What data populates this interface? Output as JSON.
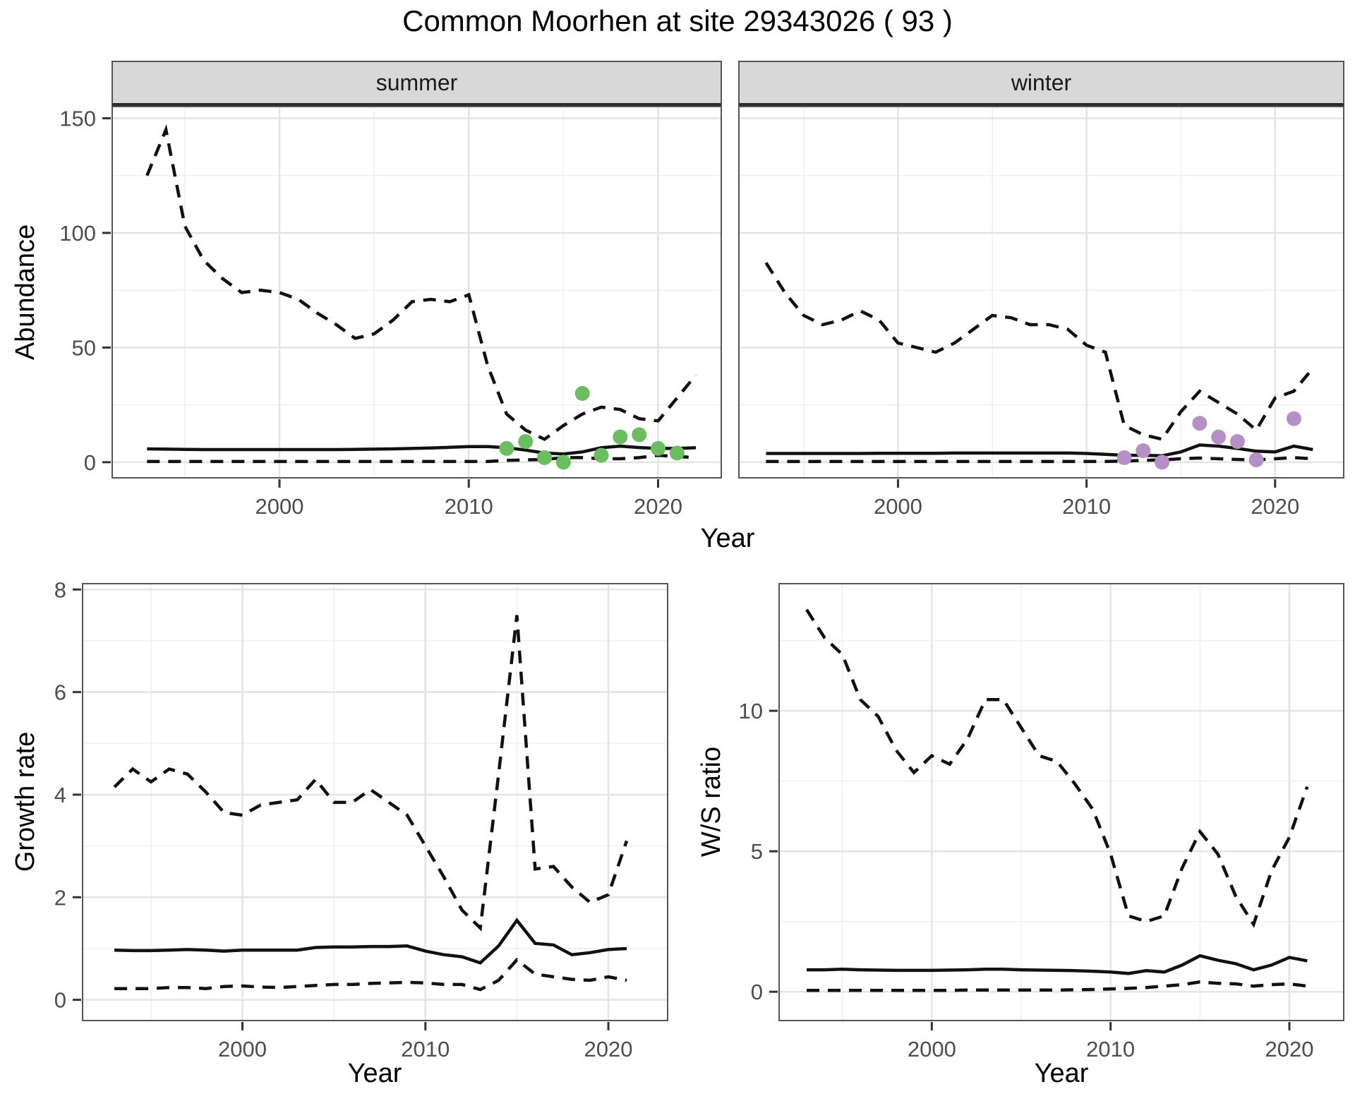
{
  "title": "Common Moorhen at site 29343026 ( 93 )",
  "colors": {
    "summer_point": "#6abe5f",
    "winter_point": "#b78fc7",
    "line": "#111111",
    "strip_bg": "#d8d8d8",
    "panel_border": "#555555",
    "grid_major": "#e4e4e4",
    "grid_minor": "#f0f0f0",
    "tick_text": "#4d4d4d",
    "background": "#ffffff"
  },
  "chart_data": [
    {
      "id": "abundance_summer",
      "type": "line",
      "facet_label": "summer",
      "xlabel": "Year",
      "ylabel": "Abundance",
      "x_ticks": [
        2000,
        2010,
        2020
      ],
      "x_minor": [
        1995,
        2005,
        2015
      ],
      "y_ticks": [
        0,
        50,
        100,
        150
      ],
      "y_minor": [
        25,
        75,
        125
      ],
      "xlim": [
        1991.2,
        2023.3
      ],
      "ylim": [
        -6.5,
        154.8
      ],
      "grid": true,
      "years": [
        1993,
        1994,
        1995,
        1996,
        1997,
        1998,
        1999,
        2000,
        2001,
        2002,
        2003,
        2004,
        2005,
        2006,
        2007,
        2008,
        2009,
        2010,
        2011,
        2012,
        2013,
        2014,
        2015,
        2016,
        2017,
        2018,
        2019,
        2020,
        2021,
        2022
      ],
      "series": [
        {
          "name": "upper_95ci",
          "style": "dashed",
          "values": [
            125,
            145,
            103,
            88,
            80,
            74,
            75,
            74,
            71,
            65,
            60,
            54,
            56,
            62,
            70,
            71,
            70,
            73,
            42,
            21,
            14,
            10,
            16,
            21,
            24,
            23,
            19,
            18,
            28,
            38
          ]
        },
        {
          "name": "median",
          "style": "solid",
          "values": [
            5.8,
            5.7,
            5.6,
            5.5,
            5.5,
            5.5,
            5.5,
            5.5,
            5.5,
            5.5,
            5.5,
            5.6,
            5.7,
            5.8,
            6.0,
            6.2,
            6.5,
            6.8,
            6.8,
            6.3,
            5.3,
            4.0,
            3.6,
            4.5,
            6.3,
            7.0,
            6.4,
            6.0,
            6.0,
            6.3
          ]
        },
        {
          "name": "lower_95ci",
          "style": "dashed",
          "values": [
            0.3,
            0.3,
            0.3,
            0.3,
            0.3,
            0.3,
            0.3,
            0.3,
            0.3,
            0.3,
            0.3,
            0.3,
            0.3,
            0.3,
            0.3,
            0.3,
            0.3,
            0.3,
            0.3,
            0.8,
            1.0,
            1.2,
            2.0,
            2.0,
            1.5,
            1.5,
            2.0,
            3.0,
            2.5,
            2.0
          ]
        }
      ],
      "points": {
        "name": "observed_counts",
        "color": "#6abe5f",
        "years": [
          2012,
          2013,
          2014,
          2015,
          2016,
          2017,
          2018,
          2019,
          2020,
          2021
        ],
        "values": [
          6,
          9,
          2,
          0,
          30,
          3,
          11,
          12,
          6,
          4
        ]
      }
    },
    {
      "id": "abundance_winter",
      "type": "line",
      "facet_label": "winter",
      "xlabel": "Year",
      "ylabel": "",
      "x_ticks": [
        2000,
        2010,
        2020
      ],
      "x_minor": [
        1995,
        2005,
        2015
      ],
      "y_ticks": [
        0,
        50,
        100,
        150
      ],
      "y_minor": [
        25,
        75,
        125
      ],
      "xlim": [
        1991.6,
        2023.6
      ],
      "ylim": [
        -6.5,
        154.8
      ],
      "grid": true,
      "years": [
        1993,
        1994,
        1995,
        1996,
        1997,
        1998,
        1999,
        2000,
        2001,
        2002,
        2003,
        2004,
        2005,
        2006,
        2007,
        2008,
        2009,
        2010,
        2011,
        2012,
        2013,
        2014,
        2015,
        2016,
        2017,
        2018,
        2019,
        2020,
        2021,
        2022
      ],
      "series": [
        {
          "name": "upper_95ci",
          "style": "dashed",
          "values": [
            87,
            74,
            64,
            60,
            62,
            66,
            62,
            52,
            50,
            48,
            52,
            58,
            64,
            63,
            60,
            60,
            58,
            51,
            48,
            16,
            12,
            10,
            22,
            31,
            26,
            21,
            14,
            28,
            31,
            41
          ]
        },
        {
          "name": "median",
          "style": "solid",
          "values": [
            3.8,
            3.8,
            3.8,
            3.8,
            3.8,
            3.8,
            3.9,
            3.9,
            3.9,
            3.9,
            4.0,
            4.0,
            4.0,
            4.0,
            4.0,
            4.0,
            4.0,
            3.8,
            3.4,
            3.0,
            3.0,
            2.8,
            4.5,
            7.5,
            7.0,
            6.0,
            4.8,
            4.5,
            7.0,
            5.5
          ]
        },
        {
          "name": "lower_95ci",
          "style": "dashed",
          "values": [
            0.3,
            0.3,
            0.3,
            0.3,
            0.3,
            0.3,
            0.3,
            0.3,
            0.3,
            0.3,
            0.3,
            0.3,
            0.3,
            0.3,
            0.3,
            0.3,
            0.3,
            0.3,
            0.3,
            0.5,
            0.8,
            1.0,
            1.5,
            1.8,
            1.5,
            1.2,
            1.0,
            1.5,
            2.0,
            1.5
          ]
        }
      ],
      "points": {
        "name": "observed_counts",
        "color": "#b78fc7",
        "years": [
          2012,
          2013,
          2014,
          2016,
          2017,
          2018,
          2019,
          2021
        ],
        "values": [
          2,
          5,
          0,
          17,
          11,
          9,
          1,
          19
        ]
      }
    },
    {
      "id": "growth_rate",
      "type": "line",
      "facet_label": "",
      "xlabel": "Year",
      "ylabel": "Growth rate",
      "x_ticks": [
        2000,
        2010,
        2020
      ],
      "x_minor": [
        1995,
        2005,
        2015
      ],
      "y_ticks": [
        0,
        2,
        4,
        6,
        8
      ],
      "y_minor": [
        1,
        3,
        5,
        7
      ],
      "xlim": [
        1991.3,
        2023.2
      ],
      "ylim": [
        -0.39,
        8.1
      ],
      "grid": true,
      "years": [
        1993,
        1994,
        1995,
        1996,
        1997,
        1998,
        1999,
        2000,
        2001,
        2002,
        2003,
        2004,
        2005,
        2006,
        2007,
        2008,
        2009,
        2010,
        2011,
        2012,
        2013,
        2014,
        2015,
        2016,
        2017,
        2018,
        2019,
        2020,
        2021
      ],
      "series": [
        {
          "name": "upper_95ci",
          "style": "dashed",
          "values": [
            4.15,
            4.5,
            4.25,
            4.5,
            4.4,
            4.05,
            3.65,
            3.6,
            3.8,
            3.85,
            3.9,
            4.3,
            3.85,
            3.85,
            4.1,
            3.85,
            3.6,
            3.0,
            2.4,
            1.75,
            1.4,
            4.4,
            7.5,
            2.55,
            2.6,
            2.2,
            1.9,
            2.05,
            3.1
          ]
        },
        {
          "name": "median",
          "style": "solid",
          "values": [
            0.97,
            0.96,
            0.96,
            0.97,
            0.98,
            0.97,
            0.95,
            0.97,
            0.97,
            0.97,
            0.97,
            1.02,
            1.03,
            1.03,
            1.04,
            1.04,
            1.05,
            0.95,
            0.88,
            0.84,
            0.72,
            1.05,
            1.55,
            1.1,
            1.07,
            0.88,
            0.92,
            0.98,
            1.0
          ]
        },
        {
          "name": "lower_95ci",
          "style": "dashed",
          "values": [
            0.22,
            0.22,
            0.22,
            0.24,
            0.24,
            0.22,
            0.26,
            0.27,
            0.25,
            0.24,
            0.26,
            0.28,
            0.3,
            0.3,
            0.32,
            0.33,
            0.34,
            0.33,
            0.3,
            0.3,
            0.2,
            0.38,
            0.78,
            0.5,
            0.45,
            0.4,
            0.38,
            0.45,
            0.38
          ]
        }
      ],
      "points": null
    },
    {
      "id": "ws_ratio",
      "type": "line",
      "facet_label": "",
      "xlabel": "Year",
      "ylabel": "W/S ratio",
      "x_ticks": [
        2000,
        2010,
        2020
      ],
      "x_minor": [
        1995,
        2005,
        2015
      ],
      "y_ticks": [
        0,
        5,
        10
      ],
      "y_minor": [
        2.5,
        7.5,
        12.5
      ],
      "xlim": [
        1991.5,
        2023.0
      ],
      "ylim": [
        -1.0,
        14.5
      ],
      "grid": true,
      "years": [
        1993,
        1994,
        1995,
        1996,
        1997,
        1998,
        1999,
        2000,
        2001,
        2002,
        2003,
        2004,
        2005,
        2006,
        2007,
        2008,
        2009,
        2010,
        2011,
        2012,
        2013,
        2014,
        2015,
        2016,
        2017,
        2018,
        2019,
        2020,
        2021
      ],
      "series": [
        {
          "name": "upper_95ci",
          "style": "dashed",
          "values": [
            13.6,
            12.6,
            12.0,
            10.4,
            9.8,
            8.6,
            7.8,
            8.4,
            8.1,
            9.0,
            10.4,
            10.4,
            9.4,
            8.4,
            8.2,
            7.4,
            6.5,
            4.9,
            2.7,
            2.5,
            2.7,
            4.4,
            5.7,
            4.9,
            3.4,
            2.4,
            4.3,
            5.5,
            7.3
          ]
        },
        {
          "name": "median",
          "style": "solid",
          "values": [
            0.78,
            0.78,
            0.8,
            0.78,
            0.77,
            0.76,
            0.76,
            0.76,
            0.77,
            0.78,
            0.8,
            0.8,
            0.78,
            0.77,
            0.76,
            0.75,
            0.73,
            0.7,
            0.65,
            0.75,
            0.7,
            0.95,
            1.28,
            1.12,
            1.0,
            0.78,
            0.95,
            1.22,
            1.1
          ]
        },
        {
          "name": "lower_95ci",
          "style": "dashed",
          "values": [
            0.05,
            0.05,
            0.05,
            0.05,
            0.05,
            0.05,
            0.05,
            0.05,
            0.05,
            0.06,
            0.06,
            0.06,
            0.06,
            0.06,
            0.06,
            0.07,
            0.08,
            0.1,
            0.12,
            0.15,
            0.2,
            0.25,
            0.35,
            0.3,
            0.28,
            0.2,
            0.25,
            0.28,
            0.2
          ]
        }
      ],
      "points": null
    }
  ]
}
